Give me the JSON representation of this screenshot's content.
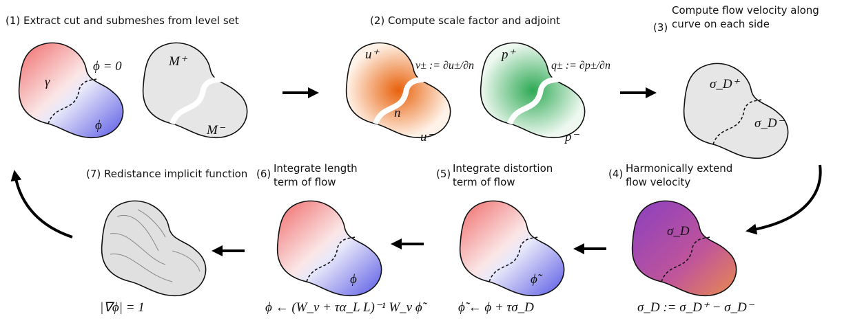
{
  "steps": [
    {
      "label": [
        "(1) Extract cut and submeshes from level set"
      ],
      "annotations": [
        "ϕ = 0",
        "γ",
        "ϕ",
        "M⁺",
        "M⁻"
      ]
    },
    {
      "label": [
        "(2) Compute scale factor and adjoint"
      ],
      "annotations": [
        "u⁺",
        "u⁻",
        "n",
        "v± := ∂u±/∂n",
        "p⁺",
        "p⁻",
        "q± := ∂p±/∂n"
      ]
    },
    {
      "label": [
        "(3)",
        "Compute flow velocity along",
        "curve on each side"
      ],
      "annotations": [
        "σ_D⁺",
        "σ_D⁻"
      ]
    },
    {
      "label": [
        "(4)",
        "Harmonically extend",
        "flow velocity"
      ],
      "annotations": [
        "σ_D",
        "σ_D := σ_D⁺ − σ_D⁻"
      ]
    },
    {
      "label": [
        "(5)",
        "Integrate distortion",
        "term of flow"
      ],
      "annotations": [
        "ϕ̃",
        "ϕ̃ ← ϕ + τσ_D"
      ]
    },
    {
      "label": [
        "(6)",
        "Integrate length",
        "term of flow"
      ],
      "annotations": [
        "ϕ",
        "ϕ ← (W_v + τα_L L)⁻¹ W_v ϕ̃"
      ]
    },
    {
      "label": [
        "(7) Redistance implicit function"
      ],
      "annotations": [
        "|∇ϕ| = 1"
      ]
    }
  ]
}
